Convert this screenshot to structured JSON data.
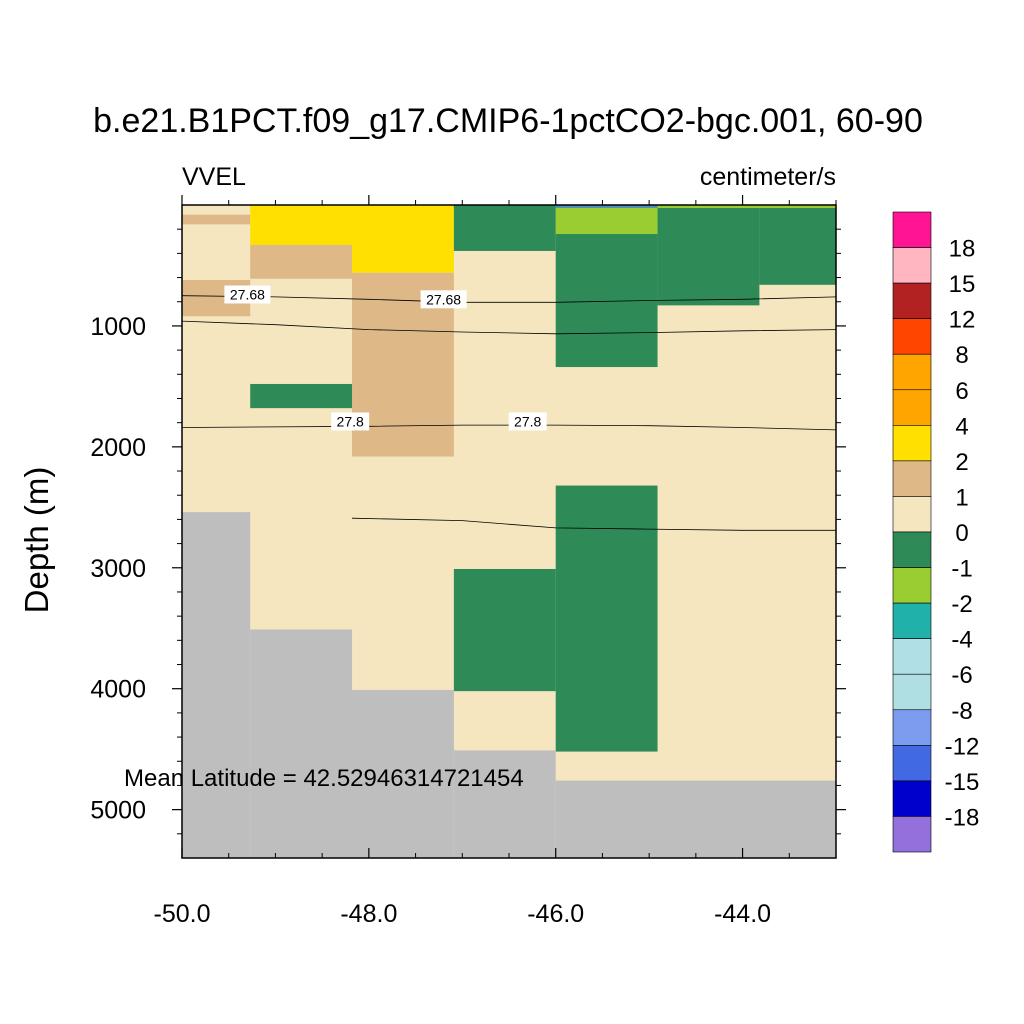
{
  "chart_data": {
    "type": "heatmap",
    "title": "b.e21.B1PCT.f09_g17.CMIP6-1pctCO2-bgc.001, 60-90",
    "left_label": "VVEL",
    "right_label": "centimeter/s",
    "ylabel": "Depth (m)",
    "xlabel": "",
    "annotation": "Mean Latitude = 42.52946314721454",
    "xlim": [
      -50.0,
      -43.0
    ],
    "ylim": [
      0,
      5400
    ],
    "y_reversed": true,
    "x_ticks": [
      -50.0,
      -48.0,
      -46.0,
      -44.0
    ],
    "x_tick_labels": [
      "-50.0",
      "-48.0",
      "-46.0",
      "-44.0"
    ],
    "y_ticks": [
      1000,
      2000,
      3000,
      4000,
      5000
    ],
    "y_tick_labels": [
      "1000",
      "2000",
      "3000",
      "4000",
      "5000"
    ],
    "colorbar": {
      "labels": [
        "18",
        "15",
        "12",
        "8",
        "6",
        "4",
        "2",
        "1",
        "0",
        "-1",
        "-2",
        "-4",
        "-6",
        "-8",
        "-12",
        "-15",
        "-18"
      ],
      "colors": [
        "#ff1493",
        "#ffb6c1",
        "#b22222",
        "#ff4500",
        "#ffa500",
        "#ffa500",
        "#ffe000",
        "#deb887",
        "#f5e6c0",
        "#2e8b57",
        "#9acd32",
        "#20b2aa",
        "#b0e0e6",
        "#b0dfe3",
        "#7b9cef",
        "#4169e1",
        "#0000cd",
        "#9370db"
      ]
    },
    "land_color": "#bebebe",
    "cells": [
      {
        "x0": -50.0,
        "x1": -43.0,
        "y0": 0,
        "y1": 5400,
        "color": "#f5e6c0"
      },
      {
        "x0": -50.0,
        "x1": -49.27,
        "y0": 80,
        "y1": 160,
        "color": "#deb887"
      },
      {
        "x0": -50.0,
        "x1": -49.27,
        "y0": 620,
        "y1": 920,
        "color": "#deb887"
      },
      {
        "x0": -49.27,
        "x1": -47.09,
        "y0": 0,
        "y1": 330,
        "color": "#ffe000"
      },
      {
        "x0": -48.18,
        "x1": -47.09,
        "y0": 330,
        "y1": 560,
        "color": "#ffe000"
      },
      {
        "x0": -49.27,
        "x1": -48.18,
        "y0": 330,
        "y1": 610,
        "color": "#deb887"
      },
      {
        "x0": -48.18,
        "x1": -47.09,
        "y0": 560,
        "y1": 2080,
        "color": "#deb887"
      },
      {
        "x0": -49.27,
        "x1": -48.18,
        "y0": 1480,
        "y1": 1680,
        "color": "#2e8b57"
      },
      {
        "x0": -47.09,
        "x1": -46.0,
        "y0": 0,
        "y1": 380,
        "color": "#2e8b57"
      },
      {
        "x0": -46.0,
        "x1": -44.91,
        "y0": 0,
        "y1": 1340,
        "color": "#2e8b57"
      },
      {
        "x0": -46.0,
        "x1": -44.91,
        "y0": 0,
        "y1": 240,
        "color": "#9acd32"
      },
      {
        "x0": -44.91,
        "x1": -43.82,
        "y0": 0,
        "y1": 830,
        "color": "#2e8b57"
      },
      {
        "x0": -43.82,
        "x1": -43.0,
        "y0": 0,
        "y1": 660,
        "color": "#2e8b57"
      },
      {
        "x0": -46.0,
        "x1": -44.91,
        "y0": 2320,
        "y1": 4520,
        "color": "#2e8b57"
      },
      {
        "x0": -47.09,
        "x1": -46.0,
        "y0": 3010,
        "y1": 4020,
        "color": "#2e8b57"
      }
    ],
    "top_strip": [
      {
        "x0": -47.09,
        "x1": -46.0,
        "color": "#2e8b57"
      },
      {
        "x0": -46.0,
        "x1": -44.91,
        "color": "#4f8fb8"
      },
      {
        "x0": -44.91,
        "x1": -43.0,
        "color": "#9acd32"
      }
    ],
    "land": [
      {
        "x0": -50.0,
        "x1": -49.27,
        "y0": 2540,
        "y1": 5400
      },
      {
        "x0": -49.27,
        "x1": -48.18,
        "y0": 3510,
        "y1": 5400
      },
      {
        "x0": -48.18,
        "x1": -47.09,
        "y0": 4010,
        "y1": 5400
      },
      {
        "x0": -47.09,
        "x1": -46.0,
        "y0": 4510,
        "y1": 5400
      },
      {
        "x0": -46.0,
        "x1": -43.0,
        "y0": 4760,
        "y1": 5400
      }
    ],
    "contours": [
      {
        "label": "27.68",
        "points": [
          [
            -50.0,
            750
          ],
          [
            -49.0,
            760
          ],
          [
            -48.0,
            780
          ],
          [
            -47.0,
            805
          ],
          [
            -46.0,
            805
          ],
          [
            -45.0,
            790
          ],
          [
            -44.0,
            780
          ],
          [
            -43.0,
            760
          ]
        ],
        "label_at": [
          [
            -49.3,
            740
          ],
          [
            -47.2,
            780
          ]
        ]
      },
      {
        "label": "",
        "points": [
          [
            -50.0,
            960
          ],
          [
            -49.0,
            990
          ],
          [
            -48.0,
            1030
          ],
          [
            -47.0,
            1050
          ],
          [
            -46.0,
            1065
          ],
          [
            -45.0,
            1055
          ],
          [
            -44.0,
            1040
          ],
          [
            -43.0,
            1030
          ]
        ],
        "label_at": []
      },
      {
        "label": "27.8",
        "points": [
          [
            -50.0,
            1840
          ],
          [
            -49.0,
            1835
          ],
          [
            -48.0,
            1830
          ],
          [
            -47.0,
            1820
          ],
          [
            -46.0,
            1820
          ],
          [
            -45.0,
            1825
          ],
          [
            -44.0,
            1840
          ],
          [
            -43.0,
            1860
          ]
        ],
        "label_at": [
          [
            -48.2,
            1790
          ],
          [
            -46.3,
            1790
          ]
        ]
      },
      {
        "label": "",
        "points": [
          [
            -48.18,
            2590
          ],
          [
            -47.0,
            2610
          ],
          [
            -46.0,
            2670
          ],
          [
            -45.0,
            2680
          ],
          [
            -44.0,
            2690
          ],
          [
            -43.0,
            2690
          ]
        ],
        "label_at": []
      }
    ]
  }
}
